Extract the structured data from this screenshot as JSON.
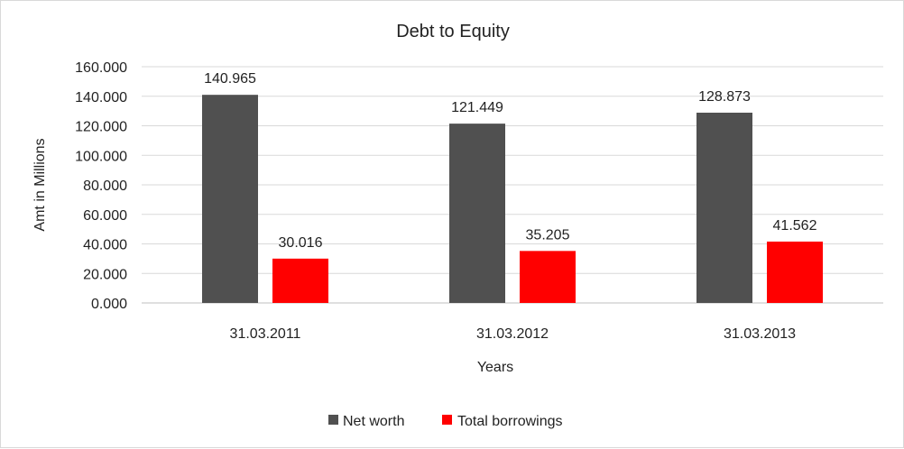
{
  "chart_data": {
    "type": "bar",
    "title": "Debt to Equity",
    "xlabel": "Years",
    "ylabel": "Amt in Millions",
    "categories": [
      "31.03.2011",
      "31.03.2012",
      "31.03.2013"
    ],
    "series": [
      {
        "name": "Net worth",
        "values": [
          140.965,
          121.449,
          128.873
        ],
        "labels": [
          "140.965",
          "121.449",
          "128.873"
        ],
        "color": "#505050"
      },
      {
        "name": "Total borrowings",
        "values": [
          30.016,
          35.205,
          41.562
        ],
        "labels": [
          "30.016",
          "35.205",
          "41.562"
        ],
        "color": "#ff0000"
      }
    ],
    "ylim": [
      0,
      160
    ],
    "yticks": [
      "0.000",
      "20.000",
      "40.000",
      "60.000",
      "80.000",
      "100.000",
      "120.000",
      "140.000",
      "160.000"
    ],
    "grid": true,
    "legend_position": "bottom"
  }
}
